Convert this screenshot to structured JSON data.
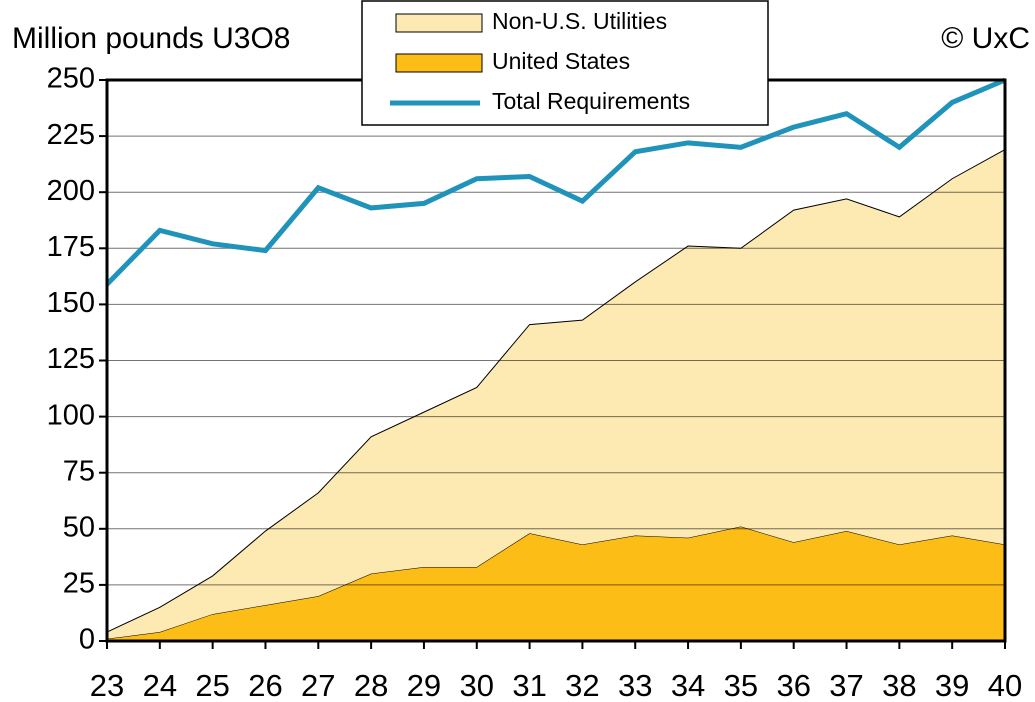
{
  "chart_data": {
    "type": "area",
    "y_axis_label": "Million pounds U3O8",
    "annotation": "© UxC",
    "categories": [
      "23",
      "24",
      "25",
      "26",
      "27",
      "28",
      "29",
      "30",
      "31",
      "32",
      "33",
      "34",
      "35",
      "36",
      "37",
      "38",
      "39",
      "40"
    ],
    "series": [
      {
        "name": "Non-U.S. Utilities",
        "color": "#fde9b2",
        "stacked": true,
        "values": [
          3,
          11,
          17,
          33,
          46,
          61,
          69,
          80,
          93,
          100,
          113,
          130,
          124,
          148,
          148,
          146,
          159,
          176
        ]
      },
      {
        "name": "United States",
        "color": "#fbbd16",
        "stacked": true,
        "values": [
          1,
          4,
          12,
          16,
          20,
          30,
          33,
          33,
          48,
          43,
          47,
          46,
          51,
          44,
          49,
          43,
          47,
          43
        ]
      },
      {
        "name": "Total Requirements",
        "color": "#1f93b9",
        "type": "line",
        "values": [
          159,
          183,
          177,
          174,
          202,
          193,
          195,
          206,
          207,
          196,
          218,
          222,
          220,
          229,
          235,
          220,
          240,
          250
        ]
      }
    ],
    "ylim": [
      0,
      250
    ],
    "yticks": [
      0,
      25,
      50,
      75,
      100,
      125,
      150,
      175,
      200,
      225,
      250
    ],
    "grid": true
  }
}
